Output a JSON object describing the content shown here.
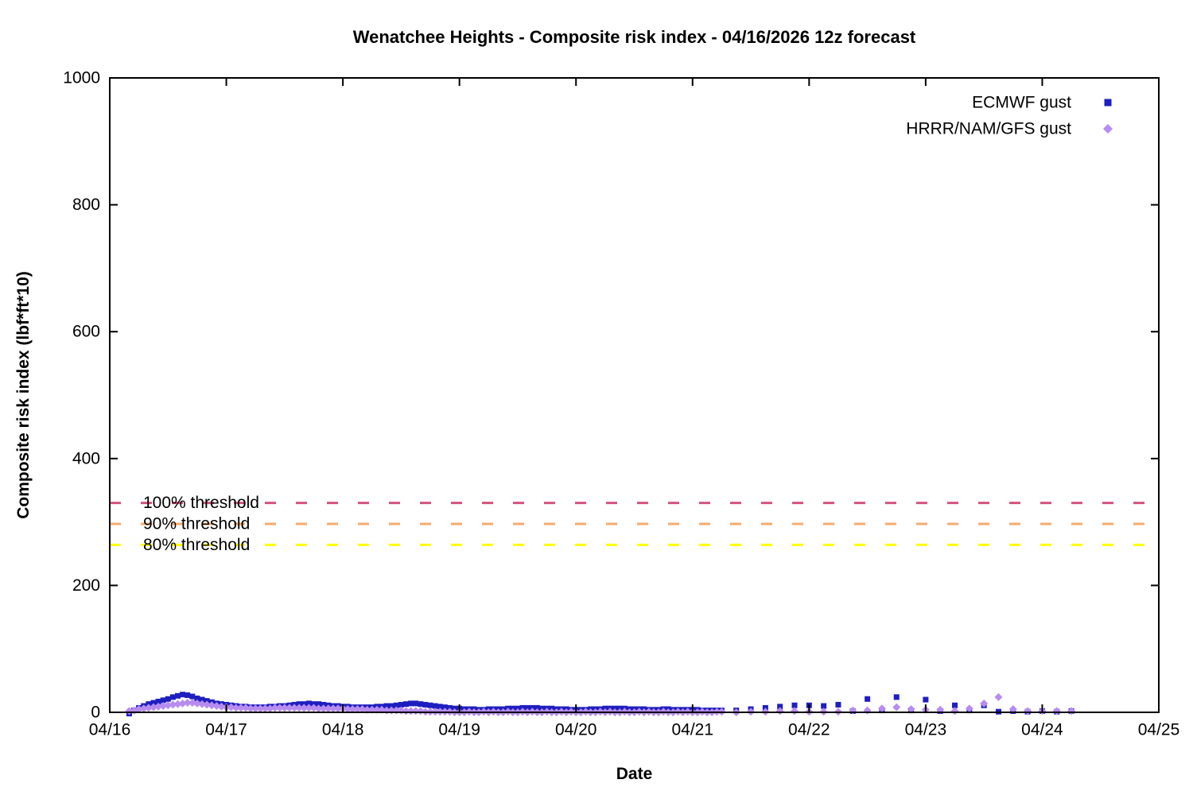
{
  "title": "Wenatchee Heights - Composite risk index - 04/16/2026 12z forecast",
  "axes": {
    "x": {
      "label": "Date",
      "tick_labels": [
        "04/16",
        "04/17",
        "04/18",
        "04/19",
        "04/20",
        "04/21",
        "04/22",
        "04/23",
        "04/24",
        "04/25"
      ],
      "range_days": [
        0,
        9
      ]
    },
    "y": {
      "label": "Composite risk index (lbf*ft*10)",
      "ticks": [
        0,
        200,
        400,
        600,
        800,
        1000
      ],
      "range": [
        0,
        1000
      ]
    }
  },
  "thresholds": [
    {
      "label": "100% threshold",
      "value": 330,
      "color": "#d4547c"
    },
    {
      "label": "90% threshold",
      "value": 297,
      "color": "#f5ab6f"
    },
    {
      "label": "80% threshold",
      "value": 264,
      "color": "#ffff00"
    }
  ],
  "legend": [
    {
      "label": "ECMWF gust",
      "marker": "square",
      "color": "#1e1ec0"
    },
    {
      "label": "HRRR/NAM/GFS gust",
      "marker": "diamond",
      "color": "#b78cf0"
    }
  ],
  "chart_data": {
    "type": "scatter",
    "x_unit": "days since 04/16 00:00",
    "xlim": [
      0,
      9
    ],
    "ylim": [
      0,
      1000
    ],
    "grid": false,
    "legend_position": "top-right-inside",
    "series": [
      {
        "id": "ecmwf",
        "name": "ECMWF gust",
        "marker": "square",
        "color": "#1e1ec0",
        "dense": {
          "start_day": 0.1667,
          "step_day": 0.041667,
          "values": [
            -2,
            3,
            7,
            10,
            13,
            15,
            17,
            19,
            21,
            24,
            26,
            28,
            27,
            25,
            22,
            20,
            18,
            16,
            14,
            13,
            12,
            11,
            10,
            9,
            9,
            8,
            8,
            8,
            8,
            9,
            9,
            10,
            10,
            11,
            12,
            13,
            13,
            14,
            13,
            13,
            12,
            11,
            10,
            10,
            9,
            9,
            8,
            8,
            8,
            8,
            8,
            9,
            9,
            10,
            10,
            11,
            12,
            13,
            14,
            14,
            13,
            12,
            11,
            10,
            9,
            8,
            7,
            6,
            6,
            5,
            5,
            5,
            4,
            4,
            5,
            5,
            5,
            5,
            6,
            6,
            6,
            7,
            7,
            7,
            7,
            6,
            6,
            6,
            5,
            5,
            5,
            4,
            4,
            4,
            4,
            5,
            5,
            5,
            6,
            6,
            6,
            6,
            6,
            5,
            5,
            5,
            5,
            4,
            4,
            4,
            5,
            5,
            4,
            4,
            4,
            4,
            4,
            4,
            3,
            3,
            3,
            3
          ]
        },
        "sparse": [
          [
            5.25,
            3
          ],
          [
            5.375,
            3
          ],
          [
            5.5,
            5
          ],
          [
            5.625,
            7
          ],
          [
            5.75,
            9
          ],
          [
            5.875,
            11
          ],
          [
            6.0,
            11
          ],
          [
            6.125,
            10
          ],
          [
            6.25,
            12
          ],
          [
            6.375,
            2
          ],
          [
            6.5,
            21
          ],
          [
            6.625,
            3
          ],
          [
            6.75,
            24
          ],
          [
            6.875,
            3
          ],
          [
            7.0,
            20
          ],
          [
            7.125,
            2
          ],
          [
            7.25,
            11
          ],
          [
            7.375,
            3
          ],
          [
            7.5,
            11
          ],
          [
            7.625,
            1
          ],
          [
            7.75,
            2
          ],
          [
            7.875,
            1
          ],
          [
            8.0,
            2
          ],
          [
            8.125,
            1
          ],
          [
            8.25,
            2
          ]
        ]
      },
      {
        "id": "hrrr",
        "name": "HRRR/NAM/GFS gust",
        "marker": "diamond",
        "color": "#b78cf0",
        "dense": {
          "start_day": 0.1667,
          "step_day": 0.041667,
          "values": [
            2,
            3,
            5,
            6,
            7,
            8,
            9,
            10,
            11,
            12,
            13,
            14,
            15,
            15,
            14,
            13,
            12,
            11,
            10,
            9,
            8,
            8,
            7,
            7,
            7,
            6,
            6,
            6,
            6,
            6,
            7,
            7,
            7,
            7,
            7,
            7,
            7,
            7,
            7,
            6,
            6,
            6,
            6,
            6,
            6,
            5,
            5,
            5,
            5,
            4,
            4,
            4,
            4,
            3,
            3,
            3,
            3,
            2,
            2,
            2,
            2,
            1,
            1,
            1,
            1,
            1,
            1,
            0,
            0,
            0,
            1,
            0,
            0,
            1,
            0,
            1,
            0,
            0,
            1,
            0,
            0,
            1,
            0,
            1,
            0,
            0,
            1,
            0,
            0,
            1,
            0,
            1,
            0,
            0,
            1,
            0,
            0,
            1,
            0,
            1,
            0,
            0,
            1,
            0,
            0,
            1,
            0,
            1,
            0,
            0,
            1,
            0,
            0,
            1,
            0,
            1,
            0,
            0,
            1,
            0,
            0,
            1
          ]
        },
        "sparse": [
          [
            5.25,
            1
          ],
          [
            5.375,
            0
          ],
          [
            5.5,
            1
          ],
          [
            5.625,
            1
          ],
          [
            5.75,
            2
          ],
          [
            5.875,
            2
          ],
          [
            6.0,
            1
          ],
          [
            6.125,
            1
          ],
          [
            6.25,
            1
          ],
          [
            6.375,
            3
          ],
          [
            6.5,
            3
          ],
          [
            6.625,
            6
          ],
          [
            6.75,
            8
          ],
          [
            6.875,
            5
          ],
          [
            7.0,
            4
          ],
          [
            7.125,
            4
          ],
          [
            7.25,
            2
          ],
          [
            7.375,
            6
          ],
          [
            7.5,
            14
          ],
          [
            7.625,
            24
          ],
          [
            7.75,
            5
          ],
          [
            7.875,
            2
          ],
          [
            8.0,
            2
          ],
          [
            8.125,
            2
          ],
          [
            8.25,
            2
          ]
        ]
      }
    ]
  }
}
